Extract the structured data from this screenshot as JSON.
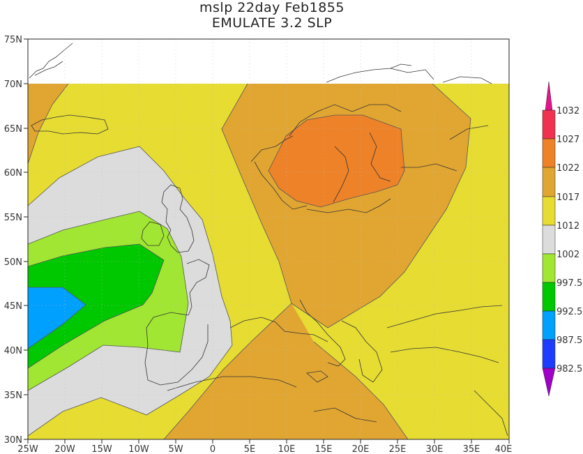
{
  "title": {
    "line1": "mslp 22day Feb1855",
    "line2": "EMULATE 3.2 SLP"
  },
  "map": {
    "lon_ticks": [
      "25W",
      "20W",
      "15W",
      "10W",
      "5W",
      "0",
      "5E",
      "10E",
      "15E",
      "20E",
      "25E",
      "30E",
      "35E",
      "40E"
    ],
    "lat_ticks": [
      "75N",
      "70N",
      "65N",
      "60N",
      "55N",
      "50N",
      "45N",
      "40N",
      "35N",
      "30N"
    ],
    "lon_range": [
      -25,
      40
    ],
    "lat_range": [
      30,
      75
    ],
    "data_lat_max": 70
  },
  "colorbar": {
    "labels": [
      "1032",
      "1027",
      "1022",
      "1017",
      "1012",
      "1002",
      "997.5",
      "992.5",
      "987.5",
      "982.5"
    ],
    "colors": {
      "over": "#e6148c",
      "c1027_1032": "#f03250",
      "c1022_1027": "#ee8228",
      "c1017_1022": "#e1a632",
      "c1012_1017": "#e6dc32",
      "c1002_1012": "#dcdcdc",
      "c997_1002": "#a0e632",
      "c992_997": "#00c800",
      "c987_992": "#00a0ff",
      "c982_987": "#1e3cff",
      "under": "#a000c8"
    }
  }
}
